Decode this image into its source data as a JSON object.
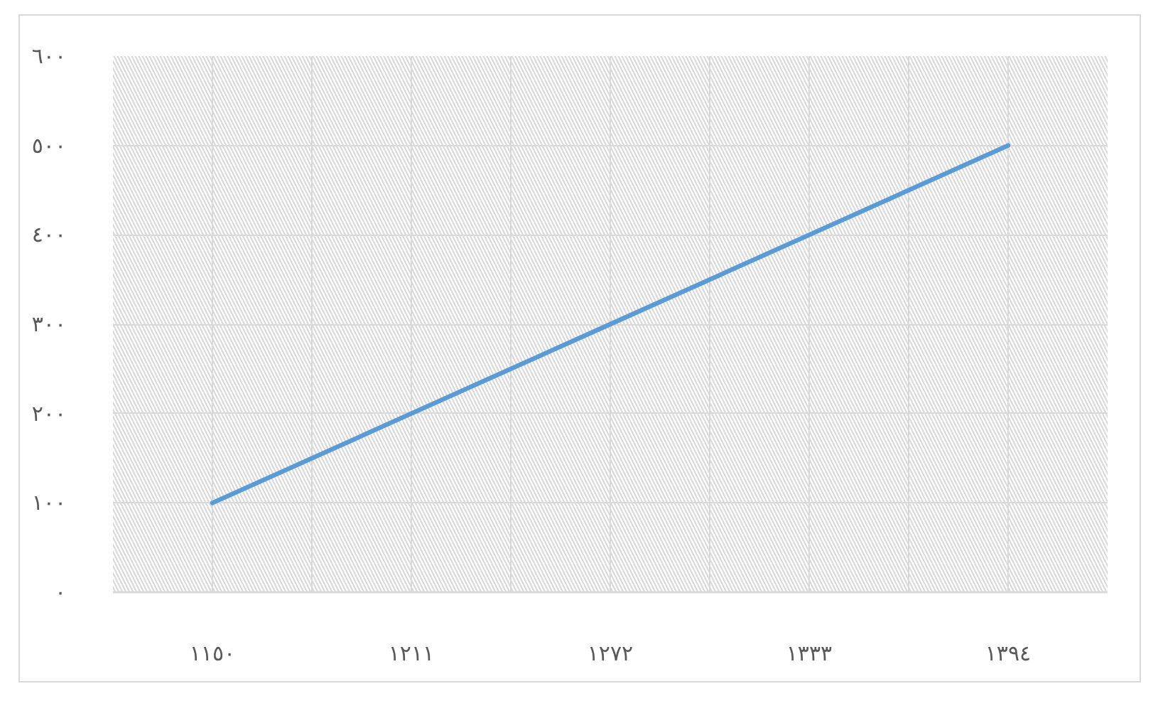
{
  "chart_data": {
    "type": "line",
    "x": [
      1150,
      1211,
      1272,
      1333,
      1394
    ],
    "xlim": [
      1119.5,
      1424.5
    ],
    "xticks": [
      {
        "value": 1119.5,
        "label": null
      },
      {
        "value": 1150,
        "label": "١١٥٠"
      },
      {
        "value": 1180.5,
        "label": null
      },
      {
        "value": 1211,
        "label": "١٢١١"
      },
      {
        "value": 1241.5,
        "label": null
      },
      {
        "value": 1272,
        "label": "١٢٧٢"
      },
      {
        "value": 1302.5,
        "label": null
      },
      {
        "value": 1333,
        "label": "١٣٣٣"
      },
      {
        "value": 1363.5,
        "label": null
      },
      {
        "value": 1394,
        "label": "١٣٩٤"
      },
      {
        "value": 1424.5,
        "label": null
      }
    ],
    "ylim": [
      0,
      600
    ],
    "yticks": [
      {
        "value": 0,
        "label": "٠"
      },
      {
        "value": 100,
        "label": "١٠٠"
      },
      {
        "value": 200,
        "label": "٢٠٠"
      },
      {
        "value": 300,
        "label": "٣٠٠"
      },
      {
        "value": 400,
        "label": "٤٠٠"
      },
      {
        "value": 500,
        "label": "٥٠٠"
      },
      {
        "value": 600,
        "label": "٦٠٠"
      }
    ],
    "series": [
      {
        "color": "#5b9bd5",
        "values": [
          100,
          200,
          300,
          400,
          500
        ]
      }
    ],
    "grid": true
  }
}
